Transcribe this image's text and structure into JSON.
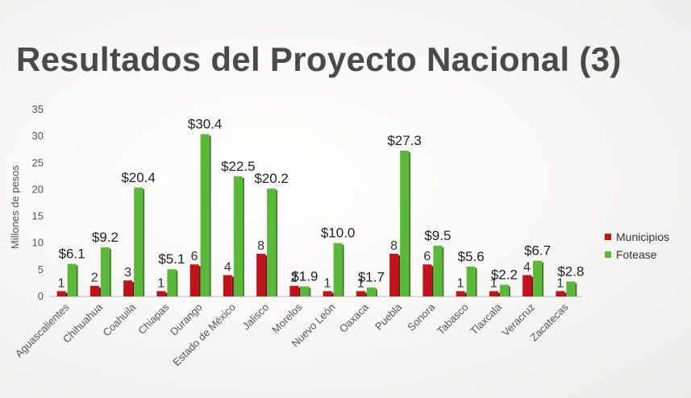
{
  "title": "Resultados del Proyecto Nacional (3)",
  "chart_data": {
    "type": "bar",
    "ylabel": "Millones de pesos",
    "ylim": [
      0,
      35
    ],
    "yticks": [
      0,
      5,
      10,
      15,
      20,
      25,
      30,
      35
    ],
    "legend_position": "right",
    "categories": [
      "Aguascalientes",
      "Chihuahua",
      "Coahuila",
      "Chiapas",
      "Durango",
      "Estado de México",
      "Jalisco",
      "Morelos",
      "Nuevo León",
      "Oaxaca",
      "Puebla",
      "Sonora",
      "Tabasco",
      "Tlaxcala",
      "Veracruz",
      "Zacatecas"
    ],
    "series": [
      {
        "name": "Municipios",
        "color": "#c0141c",
        "values": [
          1,
          2,
          3,
          1,
          6,
          4,
          8,
          2,
          1,
          1,
          8,
          6,
          1,
          1,
          4,
          1
        ],
        "labels": [
          "1",
          "2",
          "3",
          "1",
          "6",
          "4",
          "8",
          "2",
          "1",
          "1",
          "8",
          "6",
          "1",
          "1",
          "4",
          "1"
        ]
      },
      {
        "name": "Fotease",
        "color": "#5cb83a",
        "values": [
          6.1,
          9.2,
          20.4,
          5.1,
          30.4,
          22.5,
          20.2,
          1.9,
          10.0,
          1.7,
          27.3,
          9.5,
          5.6,
          2.2,
          6.7,
          2.8
        ],
        "labels": [
          "$6.1",
          "$9.2",
          "$20.4",
          "$5.1",
          "$30.4",
          "$22.5",
          "$20.2",
          "$1.9",
          "$10.0",
          "$1.7",
          "$27.3",
          "$9.5",
          "$5.6",
          "$2.2",
          "$6.7",
          "$2.8"
        ]
      }
    ]
  }
}
